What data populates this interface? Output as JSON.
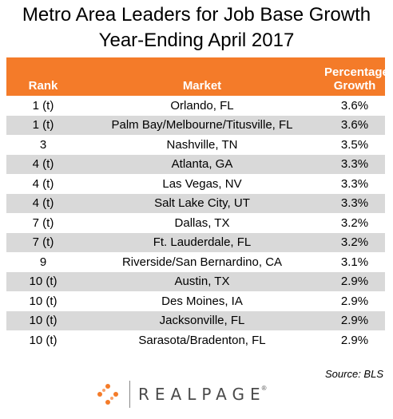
{
  "title": {
    "line1": "Metro Area Leaders for Job Base Growth",
    "line2": "Year-Ending April 2017"
  },
  "table": {
    "headers": {
      "rank": "Rank",
      "market": "Market",
      "growth_line1": "Percentage",
      "growth_line2": "Growth"
    },
    "rows": [
      {
        "rank": "1 (t)",
        "market": "Orlando, FL",
        "growth": "3.6%"
      },
      {
        "rank": "1 (t)",
        "market": "Palm Bay/Melbourne/Titusville, FL",
        "growth": "3.6%"
      },
      {
        "rank": "3",
        "market": "Nashville, TN",
        "growth": "3.5%"
      },
      {
        "rank": "4 (t)",
        "market": "Atlanta, GA",
        "growth": "3.3%"
      },
      {
        "rank": "4 (t)",
        "market": "Las Vegas, NV",
        "growth": "3.3%"
      },
      {
        "rank": "4 (t)",
        "market": "Salt Lake City, UT",
        "growth": "3.3%"
      },
      {
        "rank": "7 (t)",
        "market": "Dallas, TX",
        "growth": "3.2%"
      },
      {
        "rank": "7 (t)",
        "market": "Ft. Lauderdale, FL",
        "growth": "3.2%"
      },
      {
        "rank": "9",
        "market": "Riverside/San Bernardino, CA",
        "growth": "3.1%"
      },
      {
        "rank": "10 (t)",
        "market": "Austin, TX",
        "growth": "2.9%"
      },
      {
        "rank": "10 (t)",
        "market": "Des Moines, IA",
        "growth": "2.9%"
      },
      {
        "rank": "10 (t)",
        "market": "Jacksonville, FL",
        "growth": "2.9%"
      },
      {
        "rank": "10 (t)",
        "market": "Sarasota/Bradenton, FL",
        "growth": "2.9%"
      }
    ]
  },
  "source": "Source: BLS",
  "logo": {
    "wordmark": "REALPAGE",
    "trademark": "®"
  },
  "colors": {
    "header_bg": "#f47b29",
    "alt_row_bg": "#d9d9d9",
    "logo_dot": "#f47b29"
  }
}
